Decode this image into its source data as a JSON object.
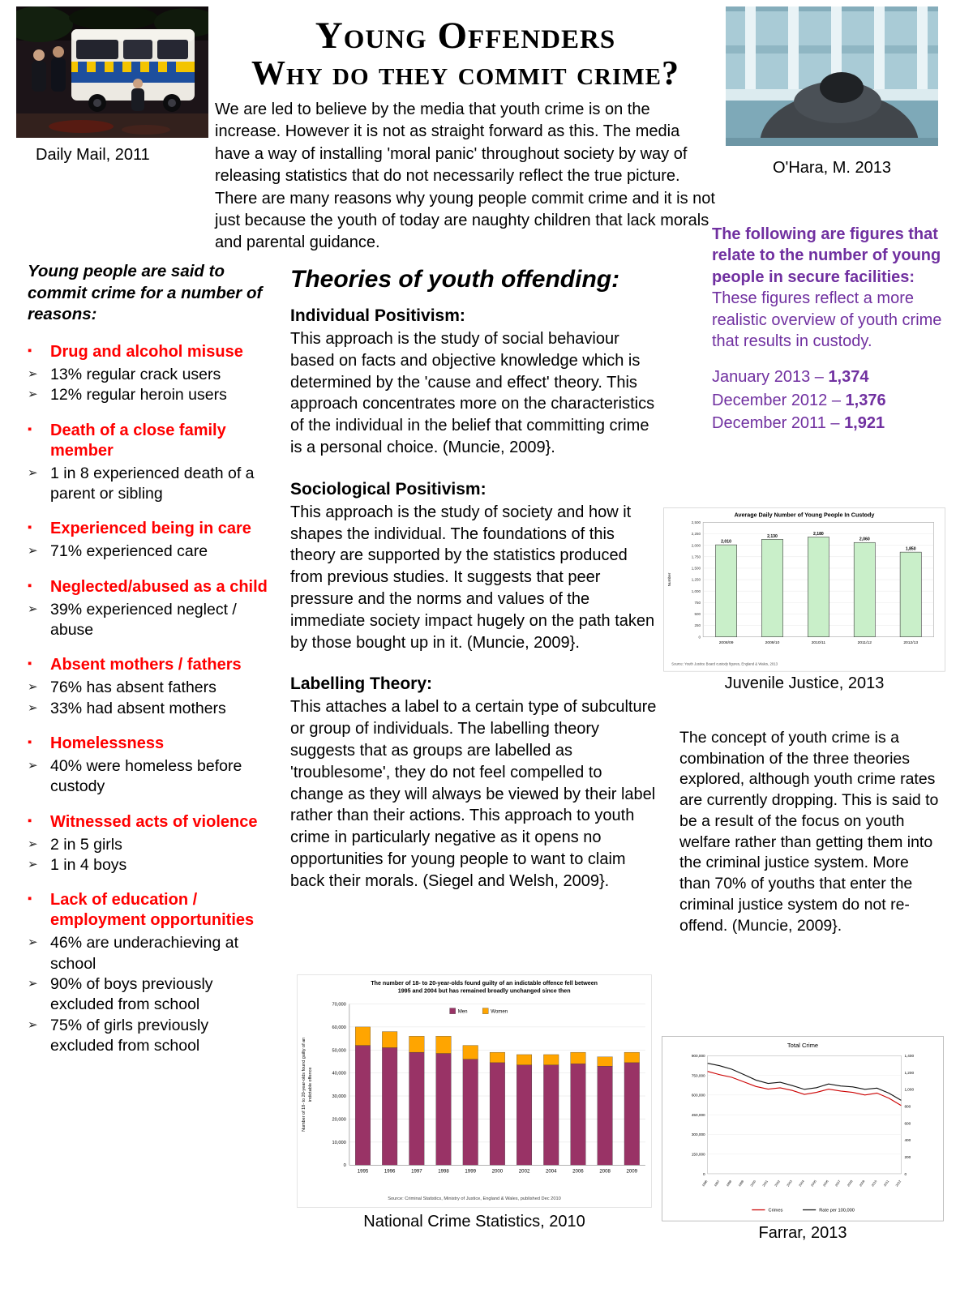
{
  "header": {
    "title_line1": "Young Offenders",
    "title_line2": "Why do they commit crime?",
    "intro": "We are led to believe by the media that youth crime is on the increase. However it is not as straight forward as this. The media have a way of installing 'moral panic' throughout society by way of releasing statistics that do not necessarily reflect the true picture. There are many reasons why young people commit crime and it is not just because the youth of today are naughty children that lack morals and parental guidance.",
    "left_photo_caption": "Daily Mail, 2011",
    "right_photo_caption": "O'Hara, M. 2013"
  },
  "reasons": {
    "heading": "Young people are said to commit crime for a number of reasons:",
    "items": [
      {
        "title": "Drug and alcohol misuse",
        "points": [
          "13% regular crack users",
          "12% regular heroin users"
        ]
      },
      {
        "title": "Death of a close family member",
        "points": [
          "1 in 8 experienced death of a parent or sibling"
        ]
      },
      {
        "title": "Experienced being in care",
        "points": [
          "71% experienced care"
        ]
      },
      {
        "title": "Neglected/abused as a child",
        "points": [
          "39% experienced neglect / abuse"
        ]
      },
      {
        "title": "Absent mothers / fathers",
        "points": [
          "76% has absent fathers",
          "33% had absent mothers"
        ]
      },
      {
        "title": "Homelessness",
        "points": [
          "40% were homeless before custody"
        ]
      },
      {
        "title": "Witnessed acts of violence",
        "points": [
          "2 in 5 girls",
          "1 in 4 boys"
        ]
      },
      {
        "title": "Lack of education / employment opportunities",
        "points": [
          "46% are underachieving at school",
          "90% of boys previously excluded from school",
          "75% of girls previously excluded from school"
        ]
      }
    ]
  },
  "theories": {
    "heading": "Theories of youth offending:",
    "sections": [
      {
        "title": "Individual Positivism:",
        "body": "This approach is the study of social behaviour based on facts and objective knowledge which is determined by the 'cause and effect' theory. This approach concentrates more on the characteristics of the individual in the belief that committing crime is a personal choice. (Muncie, 2009}."
      },
      {
        "title": "Sociological Positivism:",
        "body": "This approach is the study of society and how it shapes the individual. The foundations of this theory are supported by the statistics produced from previous studies. It suggests that peer pressure and the norms and values of the immediate society impact hugely on the path taken by those bought up in it. (Muncie, 2009}."
      },
      {
        "title": "Labelling Theory:",
        "body": "This attaches a label to a certain type of subculture or group of individuals. The labelling theory suggests that as groups are labelled as 'troublesome', they do not feel compelled to change as they will always be viewed by their label rather than their actions. This approach to youth crime in particularly negative as it opens no opportunities for young people to want to claim back their morals. (Siegel and Welsh, 2009}."
      }
    ]
  },
  "figures_panel": {
    "lead_bold": "The following are figures that relate to the number of young people in secure facilities:",
    "lead_rest": " These figures reflect a more realistic overview of youth crime that results in custody.",
    "lines": [
      {
        "label": "January 2013 – ",
        "value": "1,374"
      },
      {
        "label": "December 2012 – ",
        "value": "1,376"
      },
      {
        "label": "December 2011 – ",
        "value": "1,921"
      }
    ]
  },
  "conclusion": "The concept of youth crime is a combination of the three theories explored, although youth crime rates are currently dropping. This is said to be a result of the focus on youth welfare rather than getting them into the criminal justice system. More than 70% of youths that enter the criminal justice system do not re-offend. (Muncie, 2009}.",
  "captions": {
    "custody_chart": "Juvenile Justice, 2013",
    "indictable_chart": "National Crime Statistics, 2010",
    "total_crime_chart": "Farrar, 2013"
  },
  "chart_data": [
    {
      "id": "custody",
      "type": "bar",
      "title": "Average Daily Number of Young People In Custody",
      "categories": [
        "2008/09",
        "2009/10",
        "2010/11",
        "2011/12",
        "2012/13"
      ],
      "values": [
        2010,
        2130,
        2180,
        2060,
        1850
      ],
      "ylabel": "Number",
      "ylim": [
        0,
        2500
      ],
      "ytick_step": 250,
      "bar_color": "#c9efc9",
      "source": "Source: Youth Justice Board custody figures, England & Wales, 2013",
      "legend": "none",
      "grid": true
    },
    {
      "id": "indictable",
      "type": "stacked_bar",
      "title": "The number of 18- to 20-year-olds found guilty of an indictable offence fell between 1995 and 2004 but has remained broadly unchanged since then",
      "title_lines": [
        "The number of 18- to 20-year-olds found guilty of an indictable offence fell between",
        "1995 and 2004 but has remained broadly unchanged since then"
      ],
      "ylabel": "Number of 18- to 20-year-olds found guilty of an indictable offence",
      "ylabel_lines": [
        "Number of 18- to 20-year-olds found guilty of an",
        "indictable offence"
      ],
      "categories": [
        "1995",
        "1996",
        "1997",
        "1998",
        "1999",
        "2000",
        "2002",
        "2004",
        "2006",
        "2008",
        "2009"
      ],
      "series": [
        {
          "name": "Men",
          "color": "#993366",
          "values": [
            52000,
            51000,
            49000,
            48500,
            46000,
            44500,
            43500,
            43500,
            44000,
            43000,
            44500
          ]
        },
        {
          "name": "Women",
          "color": "#ffa500",
          "values": [
            8000,
            7000,
            7000,
            7500,
            6000,
            4500,
            4500,
            4500,
            5000,
            4000,
            4500
          ]
        }
      ],
      "ylim": [
        0,
        70000
      ],
      "ytick_step": 10000,
      "legend_position": "top",
      "grid": true,
      "source": "Source: Criminal Statistics, Ministry of Justice, England & Wales, published Dec 2010"
    },
    {
      "id": "total_crime",
      "type": "line",
      "title": "Total Crime",
      "x": [
        "1996",
        "1997",
        "1998",
        "1999",
        "2000",
        "2001",
        "2002",
        "2003",
        "2004",
        "2005",
        "2006",
        "2007",
        "2008",
        "2009",
        "2010",
        "2011",
        "2012"
      ],
      "series": [
        {
          "name": "Crimes",
          "color": "#cc0000",
          "axis": "left",
          "values": [
            780000,
            755000,
            735000,
            700000,
            665000,
            645000,
            655000,
            635000,
            605000,
            620000,
            645000,
            630000,
            620000,
            600000,
            615000,
            575000,
            520000
          ]
        },
        {
          "name": "Rate per 100,000",
          "color": "#111111",
          "axis": "right",
          "values": [
            1310,
            1280,
            1240,
            1175,
            1110,
            1070,
            1085,
            1045,
            1000,
            1020,
            1065,
            1040,
            1030,
            1000,
            1015,
            955,
            870
          ]
        }
      ],
      "left_ylim": [
        0,
        900000
      ],
      "left_step": 150000,
      "right_ylim": [
        0,
        1400
      ],
      "right_step": 200,
      "legend_position": "bottom",
      "grid": true
    }
  ]
}
